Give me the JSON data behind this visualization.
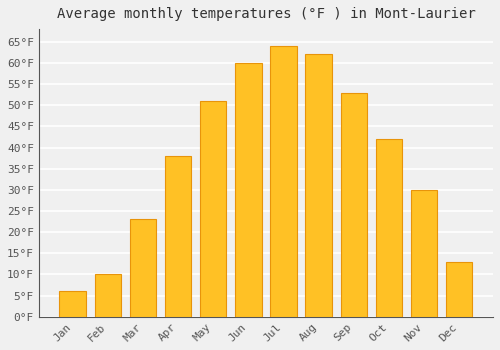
{
  "title": "Average monthly temperatures (°F ) in Mont-Laurier",
  "months": [
    "Jan",
    "Feb",
    "Mar",
    "Apr",
    "May",
    "Jun",
    "Jul",
    "Aug",
    "Sep",
    "Oct",
    "Nov",
    "Dec"
  ],
  "values": [
    6,
    10,
    23,
    38,
    51,
    60,
    64,
    62,
    53,
    42,
    30,
    13
  ],
  "bar_color": "#FFC125",
  "bar_edge_color": "#E8940A",
  "ylim": [
    0,
    68
  ],
  "yticks": [
    0,
    5,
    10,
    15,
    20,
    25,
    30,
    35,
    40,
    45,
    50,
    55,
    60,
    65
  ],
  "ytick_labels": [
    "0°F",
    "5°F",
    "10°F",
    "15°F",
    "20°F",
    "25°F",
    "30°F",
    "35°F",
    "40°F",
    "45°F",
    "50°F",
    "55°F",
    "60°F",
    "65°F"
  ],
  "background_color": "#f0f0f0",
  "plot_bg_color": "#f0f0f0",
  "grid_color": "#ffffff",
  "title_fontsize": 10,
  "tick_fontsize": 8,
  "font_family": "monospace",
  "bar_width": 0.75
}
